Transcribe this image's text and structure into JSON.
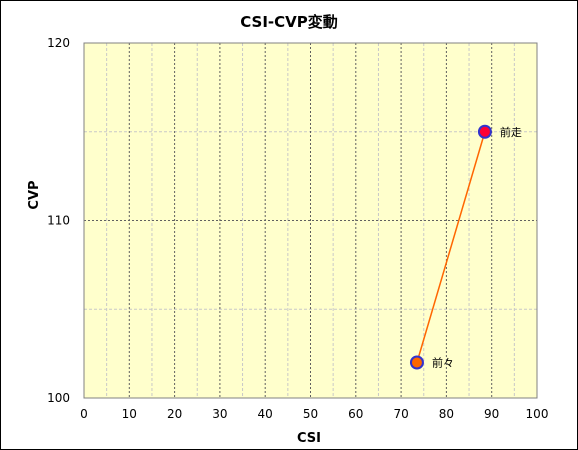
{
  "chart_data": {
    "type": "scatter",
    "title": "CSI-CVP変動",
    "xlabel": "CSI",
    "ylabel": "CVP",
    "xlim": [
      0,
      100
    ],
    "ylim": [
      100,
      120
    ],
    "x_ticks": [
      "0",
      "10",
      "20",
      "30",
      "40",
      "50",
      "60",
      "70",
      "80",
      "90",
      "100"
    ],
    "y_ticks": [
      "100",
      "110",
      "120"
    ],
    "grid": true,
    "points": [
      {
        "label": "前々",
        "x": 73.5,
        "y": 102,
        "color": "#FF6600",
        "edge": "#3333CC"
      },
      {
        "label": "前走",
        "x": 88.5,
        "y": 115,
        "color": "#FF0033",
        "edge": "#3333CC"
      }
    ],
    "line_color": "#FF6600",
    "plot_background": "#FFFFCC"
  }
}
